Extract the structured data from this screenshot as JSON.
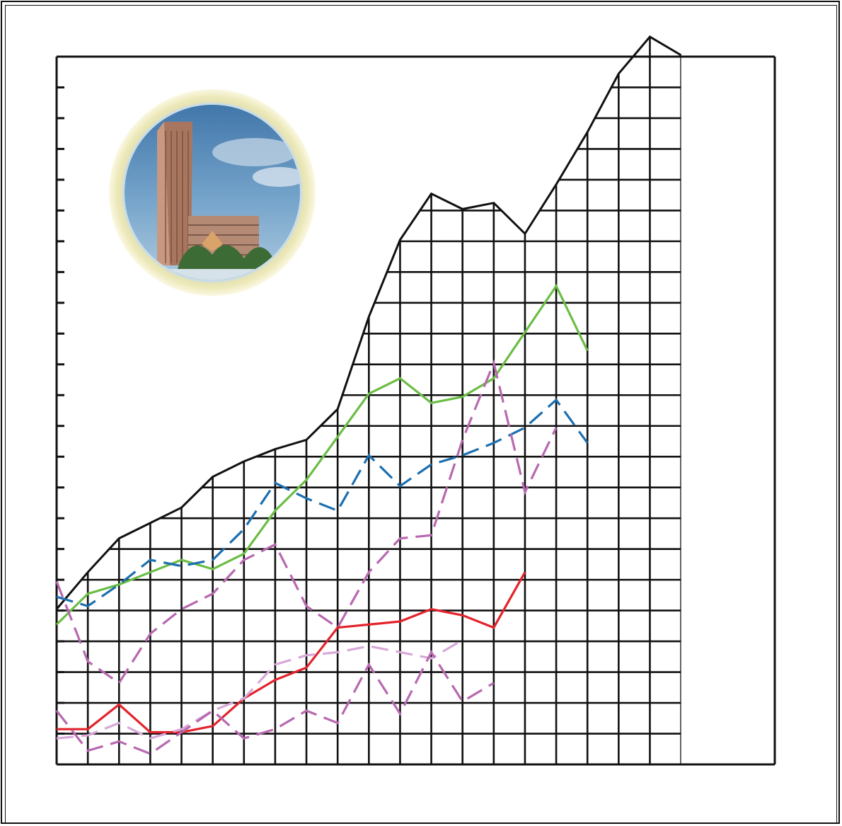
{
  "chart_data": {
    "type": "line",
    "title": "",
    "xlabel": "",
    "ylabel": "",
    "grid": true,
    "x": [
      0,
      1,
      2,
      3,
      4,
      5,
      6,
      7,
      8,
      9,
      10,
      11,
      12,
      13,
      14,
      15,
      16,
      17,
      18,
      19,
      20,
      21,
      22,
      23
    ],
    "xlim": [
      0,
      23
    ],
    "ylim": [
      0,
      23
    ],
    "illustration": "building-photo-medallion",
    "series": [
      {
        "style": "solid",
        "color": "#111111",
        "filled_area": true,
        "points": [
          [
            0,
            5.0
          ],
          [
            1,
            6.2
          ],
          [
            2,
            7.3
          ],
          [
            3,
            7.8
          ],
          [
            4,
            8.3
          ],
          [
            5,
            9.3
          ],
          [
            6,
            9.8
          ],
          [
            7,
            10.2
          ],
          [
            8,
            10.5
          ],
          [
            9,
            11.5
          ],
          [
            10,
            14.5
          ],
          [
            11,
            17.0
          ],
          [
            12,
            18.5
          ],
          [
            13,
            18.0
          ],
          [
            14,
            18.2
          ],
          [
            15,
            17.2
          ],
          [
            16,
            18.8
          ],
          [
            17,
            20.5
          ],
          [
            18,
            22.4
          ],
          [
            19,
            23.6
          ],
          [
            20,
            23.0
          ]
        ]
      },
      {
        "style": "solid",
        "color": "#6bbd45",
        "points": [
          [
            0,
            4.5
          ],
          [
            1,
            5.5
          ],
          [
            2,
            5.8
          ],
          [
            3,
            6.2
          ],
          [
            4,
            6.6
          ],
          [
            5,
            6.3
          ],
          [
            6,
            6.8
          ],
          [
            7,
            8.2
          ],
          [
            8,
            9.2
          ],
          [
            9,
            10.6
          ],
          [
            10,
            12.0
          ],
          [
            11,
            12.5
          ],
          [
            12,
            11.7
          ],
          [
            13,
            11.9
          ],
          [
            14,
            12.5
          ],
          [
            15,
            14.0
          ],
          [
            16,
            15.5
          ],
          [
            17,
            13.4
          ]
        ]
      },
      {
        "style": "dashed",
        "color": "#1c6fb0",
        "points": [
          [
            0,
            5.4
          ],
          [
            1,
            5.1
          ],
          [
            2,
            5.8
          ],
          [
            3,
            6.6
          ],
          [
            4,
            6.4
          ],
          [
            5,
            6.6
          ],
          [
            6,
            7.6
          ],
          [
            7,
            9.1
          ],
          [
            8,
            8.6
          ],
          [
            9,
            8.2
          ],
          [
            10,
            10.0
          ],
          [
            11,
            9.0
          ],
          [
            12,
            9.7
          ],
          [
            13,
            10.0
          ],
          [
            14,
            10.4
          ],
          [
            15,
            10.9
          ],
          [
            16,
            11.8
          ],
          [
            17,
            10.4
          ]
        ]
      },
      {
        "style": "dashed",
        "color": "#b868b0",
        "points": [
          [
            0,
            5.9
          ],
          [
            1,
            3.3
          ],
          [
            2,
            2.6
          ],
          [
            3,
            4.2
          ],
          [
            4,
            5.0
          ],
          [
            5,
            5.5
          ],
          [
            6,
            6.6
          ],
          [
            7,
            7.1
          ],
          [
            8,
            5.1
          ],
          [
            9,
            4.4
          ],
          [
            10,
            6.2
          ],
          [
            11,
            7.3
          ],
          [
            12,
            7.4
          ],
          [
            13,
            10.5
          ],
          [
            14,
            13.0
          ],
          [
            15,
            8.8
          ],
          [
            16,
            10.9
          ]
        ]
      },
      {
        "style": "solid",
        "color": "#e2232b",
        "points": [
          [
            0,
            1.1
          ],
          [
            1,
            1.1
          ],
          [
            2,
            1.9
          ],
          [
            3,
            1.0
          ],
          [
            4,
            1.0
          ],
          [
            5,
            1.2
          ],
          [
            6,
            2.1
          ],
          [
            7,
            2.7
          ],
          [
            8,
            3.1
          ],
          [
            9,
            4.4
          ],
          [
            10,
            4.5
          ],
          [
            11,
            4.6
          ],
          [
            12,
            5.0
          ],
          [
            13,
            4.8
          ],
          [
            14,
            4.4
          ],
          [
            15,
            6.2
          ]
        ]
      },
      {
        "style": "dashed",
        "color": "#d8a8d8",
        "points": [
          [
            0,
            0.8
          ],
          [
            1,
            0.9
          ],
          [
            2,
            1.3
          ],
          [
            3,
            0.8
          ],
          [
            4,
            1.1
          ],
          [
            5,
            1.7
          ],
          [
            6,
            2.1
          ],
          [
            7,
            3.2
          ],
          [
            8,
            3.5
          ],
          [
            9,
            3.6
          ],
          [
            10,
            3.8
          ],
          [
            11,
            3.6
          ],
          [
            12,
            3.4
          ],
          [
            13,
            4.0
          ]
        ]
      },
      {
        "style": "dashed",
        "color": "#b868b0",
        "points": [
          [
            0,
            1.7
          ],
          [
            1,
            0.4
          ],
          [
            2,
            0.7
          ],
          [
            3,
            0.3
          ],
          [
            4,
            1.0
          ],
          [
            5,
            1.7
          ],
          [
            6,
            0.8
          ],
          [
            7,
            1.1
          ],
          [
            8,
            1.7
          ],
          [
            9,
            1.3
          ],
          [
            10,
            3.2
          ],
          [
            11,
            1.6
          ],
          [
            12,
            3.6
          ],
          [
            13,
            2.0
          ],
          [
            14,
            2.6
          ]
        ]
      }
    ]
  }
}
